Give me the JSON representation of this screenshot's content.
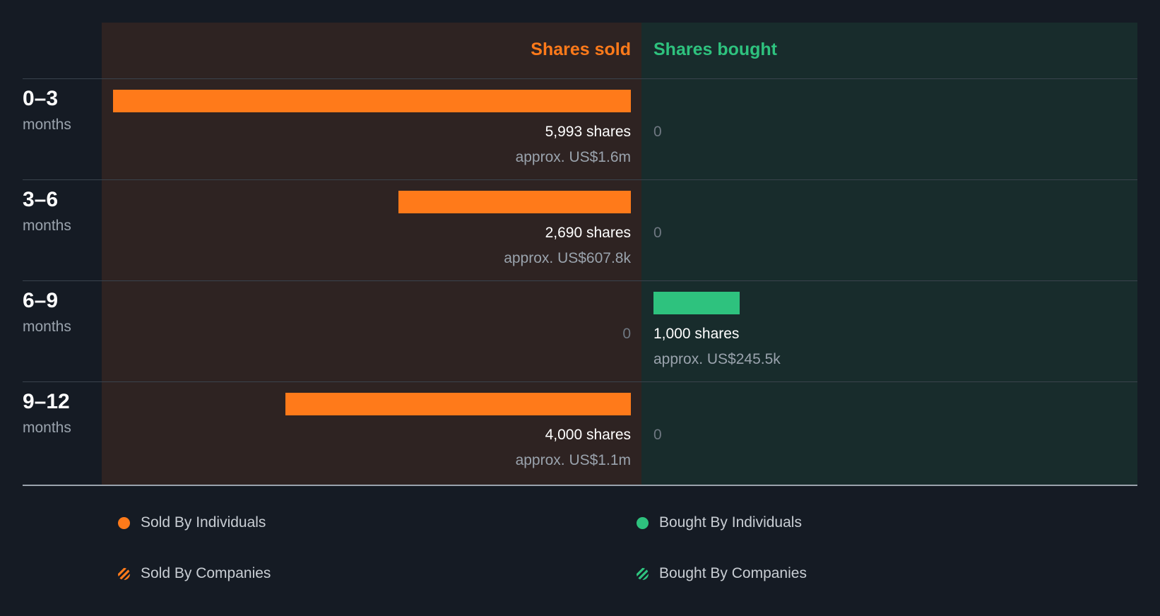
{
  "chart_data": {
    "type": "bar",
    "title": "",
    "columns": {
      "sold": "Shares sold",
      "bought": "Shares bought"
    },
    "periods": [
      {
        "range": "0–3",
        "unit": "months",
        "sold": {
          "shares": 5993,
          "shares_label": "5,993 shares",
          "approx_label": "approx. US$1.6m"
        },
        "bought": {
          "shares": 0,
          "shares_label": "0",
          "approx_label": ""
        }
      },
      {
        "range": "3–6",
        "unit": "months",
        "sold": {
          "shares": 2690,
          "shares_label": "2,690 shares",
          "approx_label": "approx. US$607.8k"
        },
        "bought": {
          "shares": 0,
          "shares_label": "0",
          "approx_label": ""
        }
      },
      {
        "range": "6–9",
        "unit": "months",
        "sold": {
          "shares": 0,
          "shares_label": "0",
          "approx_label": ""
        },
        "bought": {
          "shares": 1000,
          "shares_label": "1,000 shares",
          "approx_label": "approx. US$245.5k"
        }
      },
      {
        "range": "9–12",
        "unit": "months",
        "sold": {
          "shares": 4000,
          "shares_label": "4,000 shares",
          "approx_label": "approx. US$1.1m"
        },
        "bought": {
          "shares": 0,
          "shares_label": "0",
          "approx_label": ""
        }
      }
    ],
    "scale_max_shares": 5993,
    "legend": [
      {
        "label": "Sold By Individuals",
        "marker": "solid",
        "color": "#ff7a1a"
      },
      {
        "label": "Bought By Individuals",
        "marker": "solid",
        "color": "#2ec27e"
      },
      {
        "label": "Sold By Companies",
        "marker": "hatched",
        "color": "#ff7a1a"
      },
      {
        "label": "Bought By Companies",
        "marker": "hatched",
        "color": "#2ec27e"
      }
    ]
  },
  "colors": {
    "sold": "#ff7a1a",
    "bought": "#2ec27e",
    "sold_panel": "#2e2322",
    "bought_panel": "#182c2c",
    "background": "#151b24"
  }
}
